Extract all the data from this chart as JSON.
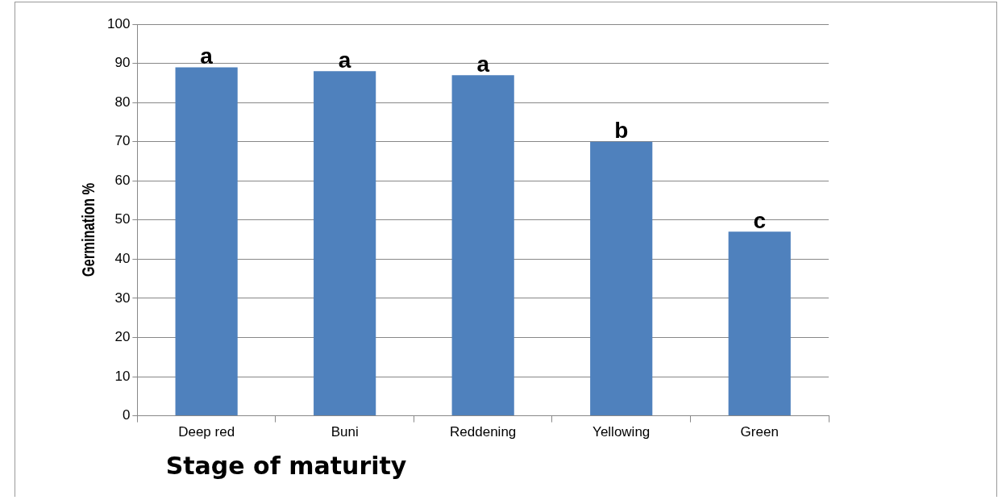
{
  "chart_data": {
    "type": "bar",
    "xlabel": "Stage of maturity",
    "ylabel": "Germination %",
    "categories": [
      "Deep red",
      "Buni",
      "Reddening",
      "Yellowing",
      "Green"
    ],
    "values": [
      89,
      88,
      87,
      70,
      47
    ],
    "color": "#4f81bd",
    "ylim": [
      0,
      100
    ],
    "yticks": [
      0,
      10,
      20,
      30,
      40,
      50,
      60,
      70,
      80,
      90,
      100
    ],
    "grid": "y",
    "legend": false,
    "annotations": [
      {
        "text": "a",
        "x": "Deep red",
        "y": 89
      },
      {
        "text": "a",
        "x": "Buni",
        "y": 88
      },
      {
        "text": "a",
        "x": "Reddening",
        "y": 87
      },
      {
        "text": "b",
        "x": "Yellowing",
        "y": 70
      },
      {
        "text": "c",
        "x": "Green",
        "y": 47
      }
    ]
  }
}
